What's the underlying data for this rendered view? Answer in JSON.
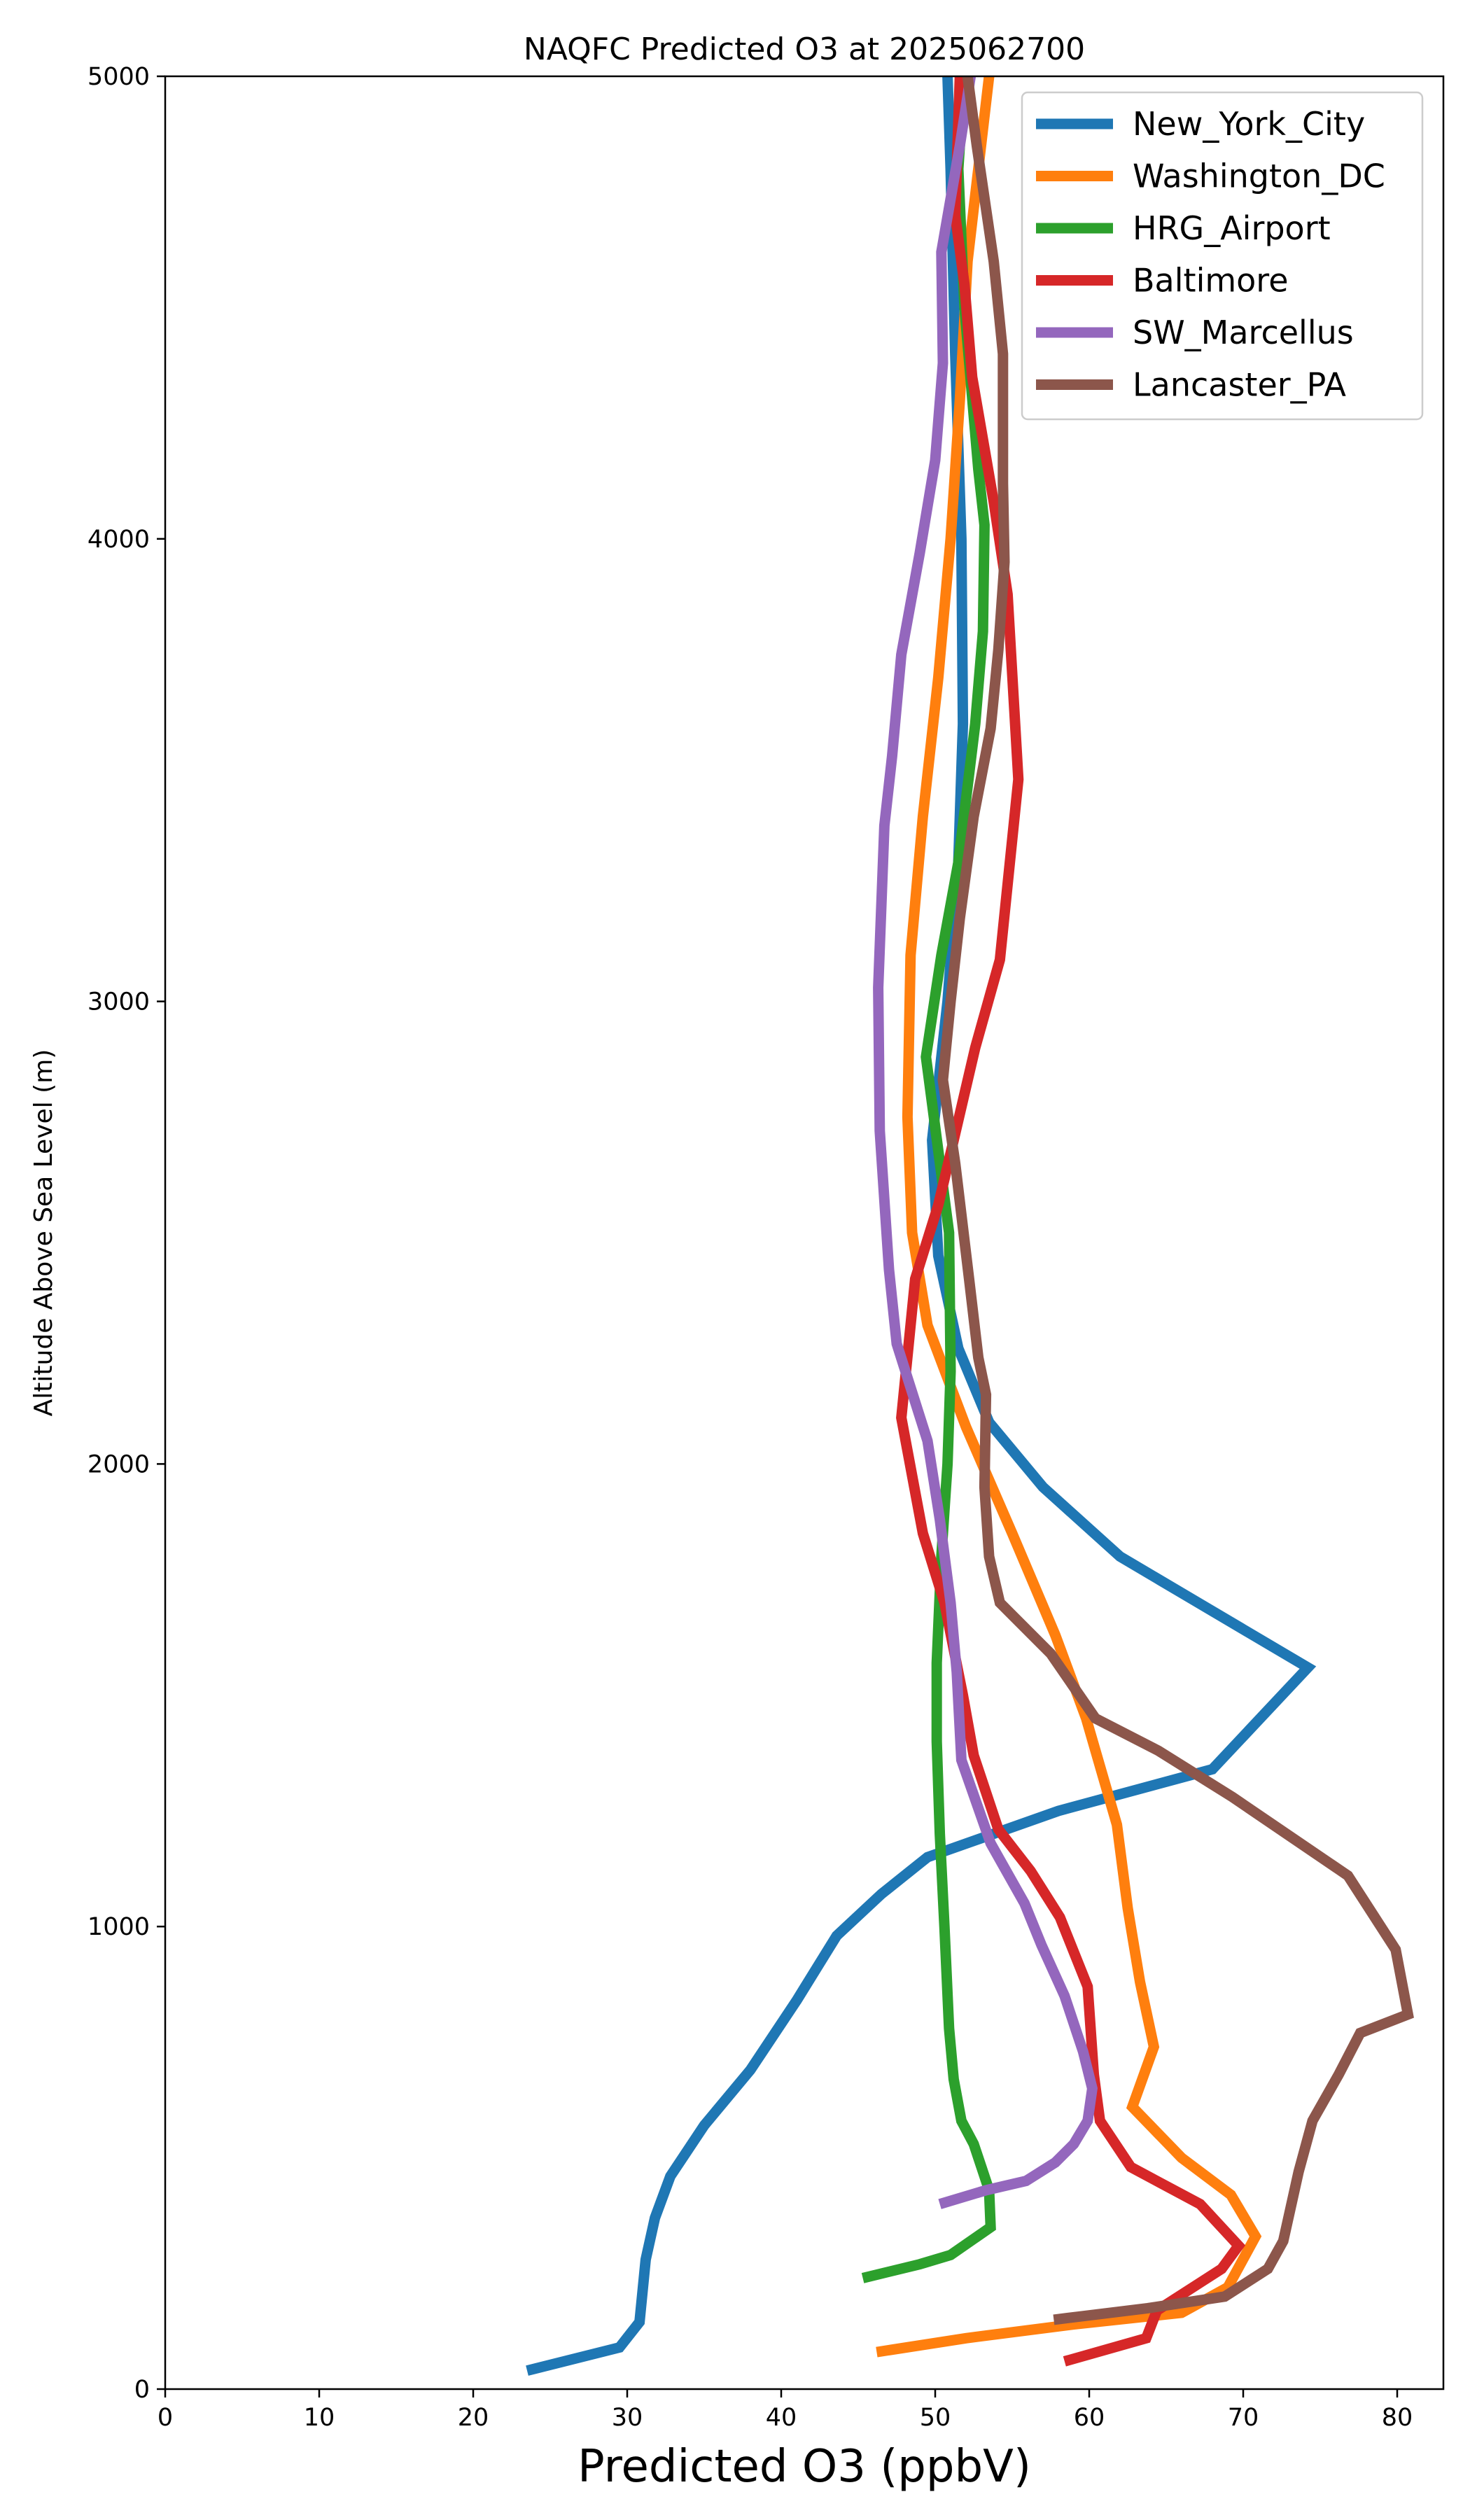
{
  "chart_data": {
    "type": "line",
    "title": "NAQFC Predicted O3 at 2025062700",
    "xlabel": "Predicted O3 (ppbV)",
    "ylabel": "Altitude Above Sea Level (m)",
    "xlim": [
      0,
      83
    ],
    "ylim": [
      0,
      5000
    ],
    "xticks": [
      0,
      10,
      20,
      30,
      40,
      50,
      60,
      70,
      80
    ],
    "yticks": [
      0,
      1000,
      2000,
      3000,
      4000,
      5000
    ],
    "grid": false,
    "legend_position": "top-right",
    "series": [
      {
        "name": "New_York_City",
        "color": "#1f77b4",
        "points": [
          [
            23.5,
            40
          ],
          [
            29.5,
            90
          ],
          [
            30.8,
            145
          ],
          [
            31.2,
            280
          ],
          [
            31.8,
            370
          ],
          [
            32.8,
            460
          ],
          [
            35,
            570
          ],
          [
            38,
            690
          ],
          [
            41,
            840
          ],
          [
            43.6,
            980
          ],
          [
            46.5,
            1070
          ],
          [
            49.5,
            1150
          ],
          [
            58,
            1250
          ],
          [
            68,
            1340
          ],
          [
            74.2,
            1560
          ],
          [
            62,
            1800
          ],
          [
            57,
            1950
          ],
          [
            53.5,
            2090
          ],
          [
            51.5,
            2250
          ],
          [
            50.2,
            2450
          ],
          [
            49.8,
            2700
          ],
          [
            50.8,
            3000
          ],
          [
            51.5,
            3300
          ],
          [
            51.8,
            3600
          ],
          [
            51.7,
            4000
          ],
          [
            51.3,
            4400
          ],
          [
            51,
            4800
          ],
          [
            50.8,
            5000
          ]
        ]
      },
      {
        "name": "Washington_DC",
        "color": "#ff7f0e",
        "points": [
          [
            46.2,
            80
          ],
          [
            52,
            110
          ],
          [
            59,
            140
          ],
          [
            66,
            165
          ],
          [
            69,
            220
          ],
          [
            70.8,
            330
          ],
          [
            69.2,
            420
          ],
          [
            66,
            500
          ],
          [
            62.8,
            610
          ],
          [
            64.2,
            740
          ],
          [
            63.3,
            880
          ],
          [
            62.5,
            1040
          ],
          [
            61.8,
            1220
          ],
          [
            59.8,
            1450
          ],
          [
            57.8,
            1630
          ],
          [
            55,
            1850
          ],
          [
            52,
            2080
          ],
          [
            49.5,
            2300
          ],
          [
            48.5,
            2500
          ],
          [
            48.2,
            2750
          ],
          [
            48.4,
            3100
          ],
          [
            49.2,
            3400
          ],
          [
            50.2,
            3700
          ],
          [
            51,
            4000
          ],
          [
            51.6,
            4300
          ],
          [
            52.1,
            4600
          ],
          [
            52.8,
            4800
          ],
          [
            53.5,
            5000
          ]
        ]
      },
      {
        "name": "HRG_Airport",
        "color": "#2ca02c",
        "points": [
          [
            45.3,
            240
          ],
          [
            49,
            270
          ],
          [
            51,
            290
          ],
          [
            53.6,
            350
          ],
          [
            53.5,
            430
          ],
          [
            53,
            480
          ],
          [
            52.5,
            530
          ],
          [
            51.7,
            580
          ],
          [
            51.2,
            670
          ],
          [
            50.9,
            780
          ],
          [
            50.6,
            1000
          ],
          [
            50.3,
            1200
          ],
          [
            50.1,
            1400
          ],
          [
            50.1,
            1570
          ],
          [
            50.4,
            1800
          ],
          [
            50.8,
            2000
          ],
          [
            51,
            2200
          ],
          [
            50.9,
            2500
          ],
          [
            49.4,
            2880
          ],
          [
            50.4,
            3100
          ],
          [
            51.5,
            3300
          ],
          [
            52.6,
            3600
          ],
          [
            53.1,
            3800
          ],
          [
            53.2,
            4030
          ],
          [
            52.8,
            4150
          ],
          [
            51.9,
            4500
          ],
          [
            51.5,
            4800
          ],
          [
            51.9,
            5000
          ]
        ]
      },
      {
        "name": "Baltimore",
        "color": "#d62728",
        "points": [
          [
            58.4,
            60
          ],
          [
            63.7,
            110
          ],
          [
            64.4,
            170
          ],
          [
            67.2,
            230
          ],
          [
            68.6,
            260
          ],
          [
            69.7,
            310
          ],
          [
            67.2,
            400
          ],
          [
            62.7,
            480
          ],
          [
            60.7,
            580
          ],
          [
            60.3,
            680
          ],
          [
            59.9,
            870
          ],
          [
            58.1,
            1020
          ],
          [
            56.2,
            1120
          ],
          [
            54.1,
            1210
          ],
          [
            52.5,
            1370
          ],
          [
            51.8,
            1500
          ],
          [
            50.6,
            1700
          ],
          [
            49.2,
            1850
          ],
          [
            47.8,
            2100
          ],
          [
            48.7,
            2400
          ],
          [
            50.2,
            2560
          ],
          [
            51.2,
            2700
          ],
          [
            52.6,
            2900
          ],
          [
            54.2,
            3090
          ],
          [
            55.4,
            3480
          ],
          [
            54.7,
            3880
          ],
          [
            53.8,
            4080
          ],
          [
            52.4,
            4350
          ],
          [
            51.9,
            4550
          ],
          [
            51.3,
            4700
          ],
          [
            51.6,
            5000
          ]
        ]
      },
      {
        "name": "SW_Marcellus",
        "color": "#9467bd",
        "points": [
          [
            50.3,
            400
          ],
          [
            53.3,
            430
          ],
          [
            55.9,
            450
          ],
          [
            57.8,
            490
          ],
          [
            59,
            530
          ],
          [
            59.9,
            580
          ],
          [
            60.2,
            650
          ],
          [
            59.6,
            730
          ],
          [
            58.4,
            850
          ],
          [
            56.9,
            960
          ],
          [
            55.8,
            1050
          ],
          [
            53.6,
            1180
          ],
          [
            51.7,
            1360
          ],
          [
            51.4,
            1550
          ],
          [
            51,
            1700
          ],
          [
            50.3,
            1880
          ],
          [
            49.5,
            2050
          ],
          [
            47.5,
            2260
          ],
          [
            47,
            2420
          ],
          [
            46.4,
            2720
          ],
          [
            46.3,
            3030
          ],
          [
            46.7,
            3380
          ],
          [
            47.2,
            3530
          ],
          [
            47.8,
            3750
          ],
          [
            49,
            3970
          ],
          [
            50,
            4170
          ],
          [
            50.5,
            4380
          ],
          [
            50.4,
            4620
          ],
          [
            51.6,
            4850
          ],
          [
            52.3,
            5000
          ]
        ]
      },
      {
        "name": "Lancaster_PA",
        "color": "#8c564b",
        "points": [
          [
            57.7,
            150
          ],
          [
            63.8,
            175
          ],
          [
            68.8,
            200
          ],
          [
            71.6,
            260
          ],
          [
            72.6,
            320
          ],
          [
            73.6,
            470
          ],
          [
            74.5,
            580
          ],
          [
            76.2,
            680
          ],
          [
            77.6,
            770
          ],
          [
            80.7,
            810
          ],
          [
            79.9,
            950
          ],
          [
            76.8,
            1110
          ],
          [
            69.3,
            1280
          ],
          [
            64.5,
            1380
          ],
          [
            60.4,
            1450
          ],
          [
            57.5,
            1590
          ],
          [
            54.2,
            1700
          ],
          [
            53.5,
            1800
          ],
          [
            53.2,
            1950
          ],
          [
            53.3,
            2150
          ],
          [
            52.8,
            2230
          ],
          [
            52.2,
            2400
          ],
          [
            51.3,
            2650
          ],
          [
            50.5,
            2830
          ],
          [
            51,
            3000
          ],
          [
            51.6,
            3180
          ],
          [
            52.5,
            3400
          ],
          [
            53.6,
            3590
          ],
          [
            54.1,
            3760
          ],
          [
            54.5,
            3950
          ],
          [
            54.4,
            4120
          ],
          [
            54.4,
            4400
          ],
          [
            53.8,
            4600
          ],
          [
            52.7,
            4850
          ],
          [
            52.1,
            5000
          ]
        ]
      }
    ]
  }
}
